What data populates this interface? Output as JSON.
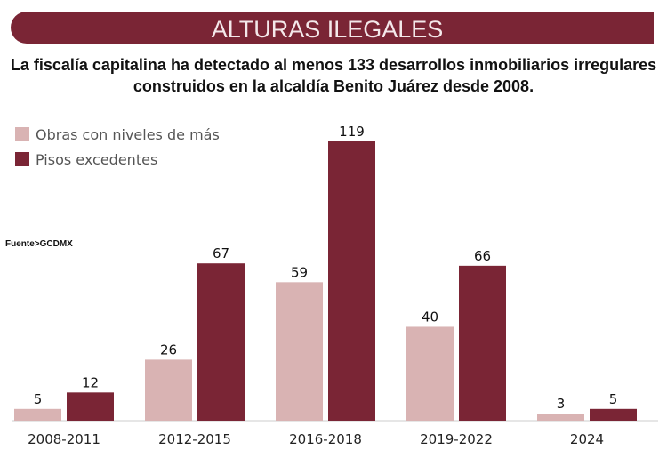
{
  "header": {
    "title": "ALTURAS ILEGALES",
    "subtitle_line1": "La fiscalía capitalina ha detectado al menos 133 desarrollos inmobiliarios irregulares",
    "subtitle_line2": "construidos en la alcaldía Benito Juárez desde 2008."
  },
  "source": "Fuente>GCDMX",
  "colors": {
    "header_bg": "#7a2535",
    "light": "#d9b3b3",
    "dark": "#7a2535"
  },
  "chart_data": {
    "type": "bar",
    "categories": [
      "2008-2011",
      "2012-2015",
      "2016-2018",
      "2019-2022",
      "2024"
    ],
    "series": [
      {
        "name": "Obras con niveles de más",
        "values": [
          5,
          26,
          59,
          40,
          3
        ]
      },
      {
        "name": "Pisos excedentes",
        "values": [
          12,
          67,
          119,
          66,
          5
        ]
      }
    ],
    "ylim": [
      0,
      119
    ],
    "grid": false,
    "legend": "top-left",
    "data_labels": true
  }
}
